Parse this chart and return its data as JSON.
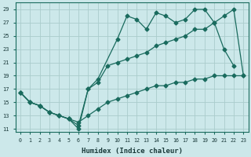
{
  "xlabel": "Humidex (Indice chaleur)",
  "bg_color": "#cce8ea",
  "grid_color": "#aacccc",
  "line_color": "#1a6b5e",
  "curve_bottom": {
    "x": [
      0,
      1,
      2,
      3,
      4,
      5,
      6,
      7,
      8,
      9,
      10,
      11,
      12,
      13,
      14,
      15,
      16,
      17,
      18,
      19,
      20,
      21,
      22,
      23
    ],
    "y": [
      16.5,
      15.0,
      14.5,
      13.5,
      13.0,
      12.5,
      12.0,
      13.0,
      14.0,
      15.0,
      15.5,
      16.0,
      16.5,
      17.0,
      17.5,
      17.5,
      18.0,
      18.0,
      18.5,
      18.5,
      19.0,
      19.0,
      19.0,
      19.0
    ]
  },
  "curve_mid": {
    "x": [
      0,
      1,
      2,
      3,
      4,
      5,
      6,
      7,
      8,
      9,
      10,
      11,
      12,
      13,
      14,
      15,
      16,
      17,
      18,
      19,
      20,
      21,
      22,
      23
    ],
    "y": [
      16.5,
      15.0,
      14.5,
      13.5,
      13.0,
      12.5,
      11.0,
      17.0,
      18.0,
      20.5,
      21.0,
      21.5,
      22.0,
      22.5,
      23.5,
      24.0,
      24.5,
      25.0,
      26.0,
      26.0,
      27.0,
      28.0,
      29.0,
      19.0
    ]
  },
  "curve_top": {
    "x": [
      0,
      1,
      2,
      3,
      4,
      5,
      6,
      7,
      8,
      10,
      11,
      12,
      13,
      14,
      15,
      16,
      17,
      18,
      19,
      20,
      21,
      22
    ],
    "y": [
      16.5,
      15.0,
      14.5,
      13.5,
      13.0,
      12.5,
      11.5,
      17.0,
      18.5,
      24.5,
      28.0,
      27.5,
      26.0,
      28.5,
      28.0,
      27.0,
      27.5,
      29.0,
      29.0,
      27.0,
      23.0,
      20.5
    ]
  },
  "xlim": [
    -0.5,
    23.5
  ],
  "ylim": [
    10.5,
    30
  ],
  "yticks": [
    11,
    13,
    15,
    17,
    19,
    21,
    23,
    25,
    27,
    29
  ],
  "xticks": [
    0,
    1,
    2,
    3,
    4,
    5,
    6,
    7,
    8,
    9,
    10,
    11,
    12,
    13,
    14,
    15,
    16,
    17,
    18,
    19,
    20,
    21,
    22,
    23
  ]
}
